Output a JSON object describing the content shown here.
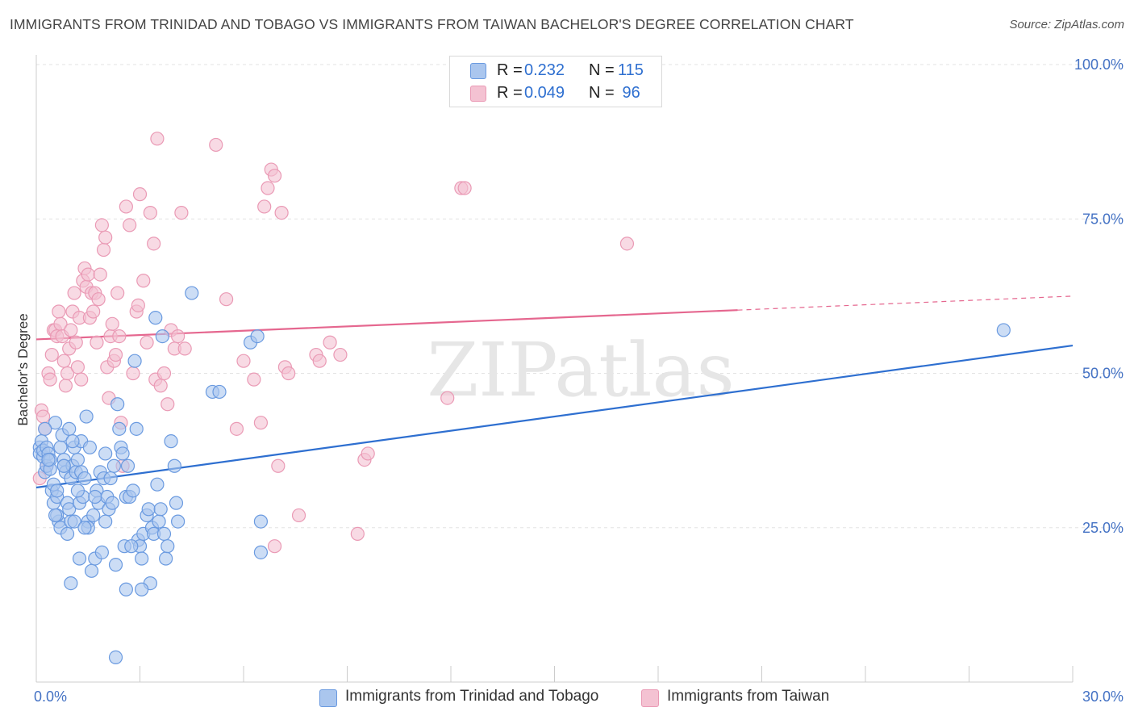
{
  "header": {
    "title": "IMMIGRANTS FROM TRINIDAD AND TOBAGO VS IMMIGRANTS FROM TAIWAN BACHELOR'S DEGREE CORRELATION CHART",
    "source": "Source: ZipAtlas.com"
  },
  "watermark": "ZIPatlas",
  "legend": {
    "rows": [
      {
        "r_label": "R =",
        "r_value": "0.232",
        "n_label": "N =",
        "n_value": "115",
        "color": "#4a86d8"
      },
      {
        "r_label": "R =",
        "r_value": "0.049",
        "n_label": "N =",
        "n_value": " 96",
        "color": "#e8678f"
      }
    ]
  },
  "bottom_legend": {
    "series1": "Immigrants from Trinidad and Tobago",
    "series2": "Immigrants from Taiwan"
  },
  "colors": {
    "blue_fill": "#aac6ee",
    "blue_stroke": "#6a9ae0",
    "blue_line": "#2e6fd0",
    "pink_fill": "#f4c2d2",
    "pink_stroke": "#ea9ab5",
    "pink_line": "#e5678f",
    "axis_text": "#4472c4"
  },
  "chart_data": {
    "type": "scatter",
    "title": "IMMIGRANTS FROM TRINIDAD AND TOBAGO VS IMMIGRANTS FROM TAIWAN BACHELOR'S DEGREE CORRELATION CHART",
    "xlabel": "",
    "ylabel": "Bachelor's Degree",
    "xlim": [
      0,
      30
    ],
    "ylim": [
      0,
      100
    ],
    "x_tick_labels": [
      "0.0%",
      "30.0%"
    ],
    "y_tick_labels": [
      "25.0%",
      "50.0%",
      "75.0%",
      "100.0%"
    ],
    "y_tick_values": [
      25,
      50,
      75,
      100
    ],
    "series": [
      {
        "name": "Immigrants from Trinidad and Tobago",
        "color": "#4a86d8",
        "trend": {
          "x0": 0,
          "y0": 31.5,
          "x1": 30,
          "y1": 54.5,
          "solid_until": 30
        },
        "points": [
          [
            0.1,
            38
          ],
          [
            0.1,
            37
          ],
          [
            0.15,
            39
          ],
          [
            0.2,
            36.5
          ],
          [
            0.2,
            37.5
          ],
          [
            0.25,
            34
          ],
          [
            0.3,
            35
          ],
          [
            0.3,
            38
          ],
          [
            0.35,
            37
          ],
          [
            0.4,
            36
          ],
          [
            0.4,
            34.5
          ],
          [
            0.45,
            31
          ],
          [
            0.5,
            32
          ],
          [
            0.5,
            29
          ],
          [
            0.55,
            42
          ],
          [
            0.6,
            30
          ],
          [
            0.6,
            31
          ],
          [
            0.65,
            26
          ],
          [
            0.7,
            25
          ],
          [
            0.7,
            38
          ],
          [
            0.75,
            40
          ],
          [
            0.8,
            36
          ],
          [
            0.8,
            35
          ],
          [
            0.85,
            34
          ],
          [
            0.9,
            24
          ],
          [
            0.9,
            29
          ],
          [
            0.95,
            28
          ],
          [
            1.0,
            26
          ],
          [
            1.0,
            33
          ],
          [
            1.05,
            35
          ],
          [
            1.1,
            38
          ],
          [
            1.1,
            26
          ],
          [
            1.15,
            34
          ],
          [
            1.2,
            36
          ],
          [
            1.25,
            29
          ],
          [
            1.3,
            39
          ],
          [
            1.3,
            34
          ],
          [
            1.35,
            30
          ],
          [
            1.4,
            33
          ],
          [
            1.45,
            43
          ],
          [
            1.5,
            26
          ],
          [
            1.5,
            25
          ],
          [
            1.55,
            38
          ],
          [
            1.6,
            18
          ],
          [
            1.65,
            27
          ],
          [
            1.7,
            20
          ],
          [
            1.75,
            31
          ],
          [
            1.8,
            29
          ],
          [
            1.85,
            34
          ],
          [
            1.9,
            21
          ],
          [
            1.95,
            33
          ],
          [
            2.0,
            26
          ],
          [
            2.0,
            37
          ],
          [
            2.05,
            30
          ],
          [
            2.1,
            28
          ],
          [
            2.2,
            29
          ],
          [
            2.25,
            35
          ],
          [
            2.3,
            19
          ],
          [
            2.35,
            45
          ],
          [
            2.4,
            41
          ],
          [
            2.45,
            38
          ],
          [
            2.5,
            37
          ],
          [
            2.55,
            22
          ],
          [
            2.6,
            30
          ],
          [
            2.65,
            35
          ],
          [
            2.7,
            30
          ],
          [
            2.8,
            31
          ],
          [
            2.85,
            52
          ],
          [
            2.9,
            41
          ],
          [
            2.95,
            23
          ],
          [
            3.0,
            22
          ],
          [
            3.05,
            20
          ],
          [
            3.1,
            24
          ],
          [
            3.2,
            27
          ],
          [
            3.25,
            28
          ],
          [
            3.3,
            16
          ],
          [
            3.35,
            25
          ],
          [
            3.4,
            24
          ],
          [
            3.45,
            59
          ],
          [
            3.5,
            32
          ],
          [
            3.55,
            26
          ],
          [
            3.6,
            28
          ],
          [
            3.65,
            56
          ],
          [
            3.7,
            24
          ],
          [
            3.75,
            20
          ],
          [
            3.8,
            22
          ],
          [
            3.9,
            39
          ],
          [
            4.0,
            35
          ],
          [
            4.05,
            29
          ],
          [
            4.1,
            26
          ],
          [
            4.5,
            63
          ],
          [
            5.1,
            47
          ],
          [
            5.3,
            47
          ],
          [
            6.2,
            55
          ],
          [
            6.4,
            56
          ],
          [
            6.5,
            26
          ],
          [
            6.5,
            21
          ],
          [
            2.3,
            4
          ],
          [
            1.0,
            16
          ],
          [
            0.8,
            35
          ],
          [
            1.2,
            31
          ],
          [
            2.6,
            15
          ],
          [
            1.7,
            30
          ],
          [
            0.35,
            36
          ],
          [
            0.6,
            27
          ],
          [
            1.4,
            25
          ],
          [
            3.05,
            15
          ],
          [
            2.75,
            22
          ],
          [
            0.95,
            41
          ],
          [
            1.25,
            20
          ],
          [
            0.55,
            27
          ],
          [
            1.05,
            39
          ],
          [
            2.15,
            33
          ],
          [
            0.25,
            41
          ],
          [
            28.0,
            57
          ]
        ]
      },
      {
        "name": "Immigrants from Taiwan",
        "color": "#e8678f",
        "trend": {
          "x0": 0,
          "y0": 55.5,
          "x1": 30,
          "y1": 62.5,
          "solid_until": 20.3
        },
        "points": [
          [
            0.1,
            33
          ],
          [
            0.15,
            44
          ],
          [
            0.2,
            43
          ],
          [
            0.25,
            41
          ],
          [
            0.3,
            35
          ],
          [
            0.35,
            50
          ],
          [
            0.4,
            49
          ],
          [
            0.45,
            53
          ],
          [
            0.5,
            57
          ],
          [
            0.55,
            57
          ],
          [
            0.6,
            56
          ],
          [
            0.65,
            60
          ],
          [
            0.7,
            58
          ],
          [
            0.75,
            56
          ],
          [
            0.8,
            52
          ],
          [
            0.85,
            48
          ],
          [
            0.9,
            50
          ],
          [
            0.95,
            54
          ],
          [
            1.0,
            57
          ],
          [
            1.05,
            60
          ],
          [
            1.1,
            63
          ],
          [
            1.15,
            55
          ],
          [
            1.2,
            51
          ],
          [
            1.25,
            59
          ],
          [
            1.3,
            49
          ],
          [
            1.35,
            65
          ],
          [
            1.4,
            67
          ],
          [
            1.45,
            64
          ],
          [
            1.5,
            66
          ],
          [
            1.55,
            59
          ],
          [
            1.6,
            63
          ],
          [
            1.65,
            60
          ],
          [
            1.7,
            63
          ],
          [
            1.75,
            55
          ],
          [
            1.8,
            62
          ],
          [
            1.85,
            66
          ],
          [
            1.9,
            74
          ],
          [
            1.95,
            70
          ],
          [
            2.0,
            72
          ],
          [
            2.05,
            51
          ],
          [
            2.1,
            46
          ],
          [
            2.15,
            56
          ],
          [
            2.2,
            58
          ],
          [
            2.25,
            52
          ],
          [
            2.3,
            53
          ],
          [
            2.35,
            63
          ],
          [
            2.4,
            56
          ],
          [
            2.45,
            42
          ],
          [
            2.5,
            35
          ],
          [
            2.6,
            77
          ],
          [
            2.7,
            74
          ],
          [
            2.8,
            50
          ],
          [
            2.9,
            60
          ],
          [
            2.95,
            61
          ],
          [
            3.0,
            79
          ],
          [
            3.1,
            65
          ],
          [
            3.2,
            55
          ],
          [
            3.3,
            76
          ],
          [
            3.4,
            71
          ],
          [
            3.45,
            49
          ],
          [
            3.5,
            88
          ],
          [
            3.6,
            48
          ],
          [
            3.7,
            50
          ],
          [
            3.8,
            45
          ],
          [
            3.9,
            57
          ],
          [
            4.0,
            54
          ],
          [
            4.1,
            56
          ],
          [
            4.2,
            76
          ],
          [
            4.3,
            54
          ],
          [
            5.2,
            87
          ],
          [
            5.5,
            62
          ],
          [
            5.8,
            41
          ],
          [
            6.0,
            52
          ],
          [
            6.3,
            49
          ],
          [
            6.5,
            42
          ],
          [
            6.6,
            77
          ],
          [
            6.7,
            80
          ],
          [
            6.8,
            83
          ],
          [
            6.9,
            82
          ],
          [
            7.1,
            76
          ],
          [
            7.2,
            51
          ],
          [
            7.3,
            50
          ],
          [
            7.6,
            27
          ],
          [
            8.1,
            53
          ],
          [
            8.2,
            52
          ],
          [
            8.5,
            55
          ],
          [
            8.8,
            53
          ],
          [
            9.3,
            24
          ],
          [
            9.5,
            36
          ],
          [
            9.6,
            37
          ],
          [
            11.9,
            46
          ],
          [
            12.3,
            80
          ],
          [
            12.4,
            80
          ],
          [
            17.1,
            71
          ],
          [
            6.9,
            22
          ],
          [
            7.0,
            35
          ]
        ]
      }
    ]
  }
}
